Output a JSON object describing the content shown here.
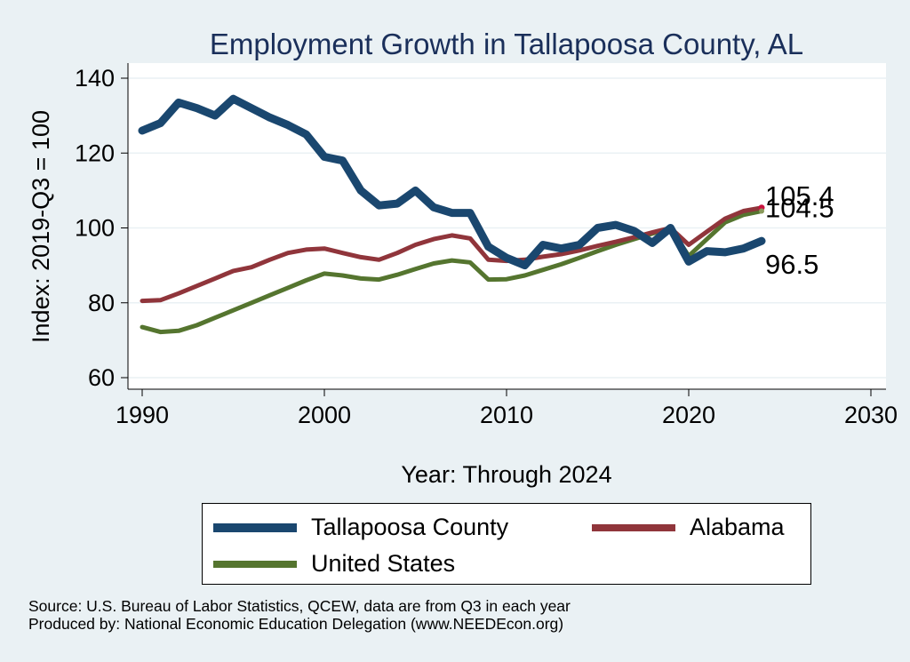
{
  "chart_data": {
    "type": "line",
    "title": "Employment Growth in Tallapoosa County, AL",
    "xlabel": "Year: Through 2024",
    "ylabel": "Index: 2019-Q3 = 100",
    "xlim": [
      1990,
      2030
    ],
    "ylim": [
      60,
      142
    ],
    "xticks": [
      1990,
      2000,
      2010,
      2020,
      2030
    ],
    "yticks": [
      60,
      80,
      100,
      120,
      140
    ],
    "grid": true,
    "x": [
      1990,
      1991,
      1992,
      1993,
      1994,
      1995,
      1996,
      1997,
      1998,
      1999,
      2000,
      2001,
      2002,
      2003,
      2004,
      2005,
      2006,
      2007,
      2008,
      2009,
      2010,
      2011,
      2012,
      2013,
      2014,
      2015,
      2016,
      2017,
      2018,
      2019,
      2020,
      2021,
      2022,
      2023,
      2024
    ],
    "series": [
      {
        "name": "Tallapoosa  County",
        "color": "#1a476f",
        "width": 9,
        "values": [
          126,
          128,
          133.5,
          132,
          130,
          134.5,
          132,
          129.5,
          127.5,
          125,
          119,
          118,
          110,
          106,
          106.5,
          110,
          105.5,
          104,
          104,
          95,
          92,
          90,
          95.5,
          94.5,
          95.5,
          100,
          100.8,
          99.2,
          96,
          100,
          91,
          93.8,
          93.5,
          94.5,
          96.5
        ],
        "end_label": "96.5"
      },
      {
        "name": "Alabama",
        "color": "#90353b",
        "width": 5,
        "values": [
          80.5,
          80.7,
          82.5,
          84.5,
          86.5,
          88.5,
          89.5,
          91.5,
          93.3,
          94.2,
          94.5,
          93.3,
          92.2,
          91.5,
          93.3,
          95.5,
          97,
          98,
          97.2,
          91.5,
          91.2,
          91.5,
          92.3,
          93,
          94,
          95.2,
          96.3,
          97.5,
          98.8,
          100,
          95.5,
          99,
          102.5,
          104.5,
          105.4
        ],
        "end_label": "105.4"
      },
      {
        "name": "United States",
        "color": "#55752f",
        "width": 5,
        "values": [
          73.5,
          72.2,
          72.5,
          74,
          76,
          78,
          80,
          82,
          84,
          86,
          87.8,
          87.3,
          86.5,
          86.2,
          87.5,
          89,
          90.5,
          91.3,
          90.8,
          86.2,
          86.3,
          87.3,
          88.8,
          90.3,
          92,
          93.8,
          95.5,
          97,
          98.5,
          100,
          92.5,
          97,
          101.5,
          103.5,
          104.5
        ],
        "end_label": "104.5"
      }
    ],
    "legend": {
      "position": "bottom",
      "order": [
        "Tallapoosa  County",
        "Alabama",
        "United States"
      ]
    }
  },
  "colors": {
    "background": "#eaf1f4",
    "plot_bg": "#ffffff",
    "end_marker": "#c8103e"
  },
  "source": {
    "line1": "Source: U.S. Bureau of Labor Statistics, QCEW, data are from Q3 in each year",
    "line2": "Produced by: National Economic Education Delegation (www.NEEDEcon.org)"
  }
}
